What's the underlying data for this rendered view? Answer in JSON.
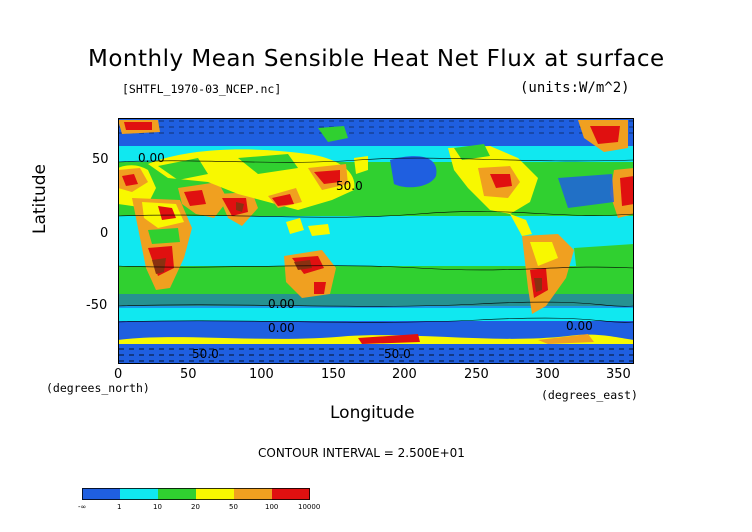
{
  "title": "Monthly Mean Sensible Heat Net Flux at surface",
  "file_label": "[SHTFL_1970-03_NCEP.nc]",
  "units_label": "(units:W/m^2)",
  "colors": {
    "dark_blue": "#1f5fe0",
    "cyan": "#10e8f0",
    "green": "#30d030",
    "yellow": "#f8f800",
    "orange": "#f0a020",
    "red": "#e01010",
    "dark_red": "#8a3010"
  },
  "chart_data": {
    "type": "heatmap",
    "title": "Monthly Mean Sensible Heat Net Flux at surface",
    "xlabel": "Longitude",
    "ylabel": "Latitude",
    "xlim": [
      0,
      360
    ],
    "ylim": [
      -90,
      90
    ],
    "x_ticks": [
      "0",
      "50",
      "100",
      "150",
      "200",
      "250",
      "300",
      "350"
    ],
    "y_ticks": [
      "50",
      "0",
      "-50"
    ],
    "x_unit_note": "(degrees_east)",
    "y_unit_note": "(degrees_north)",
    "contour_interval": "CONTOUR INTERVAL = 2.500E+01",
    "contour_labels": [
      "0.00",
      "50.0",
      "0.00",
      "0.00",
      "50.0",
      "50.0",
      "0.00"
    ],
    "colorbar_levels": [
      "-∞",
      "1",
      "10",
      "20",
      "50",
      "100",
      "10000"
    ]
  }
}
